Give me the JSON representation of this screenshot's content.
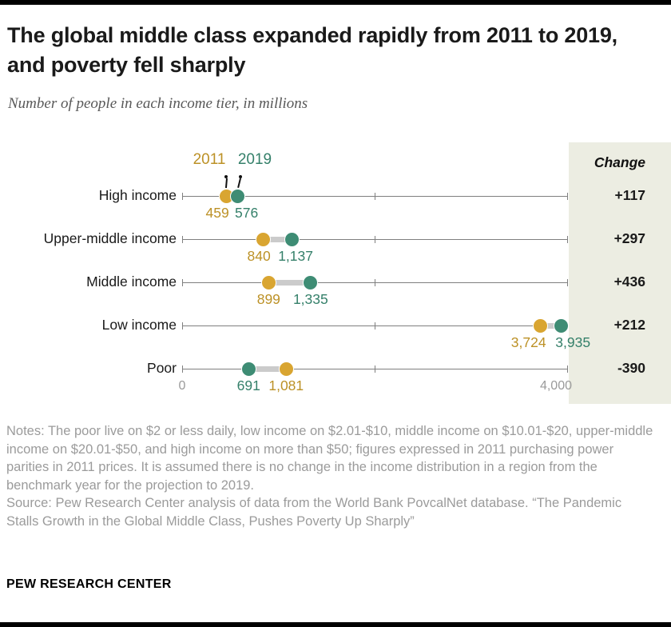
{
  "header": {
    "title": "The global middle class expanded rapidly from 2011 to 2019, and poverty fell sharply",
    "subtitle": "Number of people in each income tier, in millions"
  },
  "chart_data": {
    "type": "dumbbell",
    "title": "The global middle class expanded rapidly from 2011 to 2019, and poverty fell sharply",
    "subtitle": "Number of people in each income tier, in millions",
    "categories": [
      "High income",
      "Upper-middle income",
      "Middle income",
      "Low income",
      "Poor"
    ],
    "series": [
      {
        "name": "2011",
        "color": "#D9A531",
        "label_color": "#BC9126",
        "values": [
          459,
          840,
          899,
          3724,
          1081
        ],
        "labels": [
          "459",
          "840",
          "899",
          "3,724",
          "1,081"
        ]
      },
      {
        "name": "2019",
        "color": "#3E8C74",
        "label_color": "#35806A",
        "values": [
          576,
          1137,
          1335,
          3935,
          691
        ],
        "labels": [
          "576",
          "1,137",
          "1,335",
          "3,935",
          "691"
        ]
      }
    ],
    "changes": [
      "+117",
      "+297",
      "+436",
      "+212",
      "-390"
    ],
    "change_label": "Change",
    "xlim": [
      0,
      4000
    ],
    "x_ticks": [
      0,
      2000,
      4000
    ],
    "x_tick_labels": [
      "0",
      "",
      "4,000"
    ],
    "grid": false,
    "legend_position": "top"
  },
  "notes": {
    "notes_text": "Notes: The poor live on $2 or less daily, low income on $2.01-$10, middle income on $10.01-$20, upper-middle income on $20.01-$50, and high income on more than $50; figures expressed in 2011 purchasing power parities in 2011 prices. It is assumed there is no change in the income distribution in a region from the benchmark year for the projection to 2019.",
    "source_text": "Source: Pew Research Center analysis of data from the World Bank PovcalNet database. “The Pandemic Stalls Growth in the Global Middle Class, Pushes Poverty Up Sharply”"
  },
  "footer": {
    "brand": "PEW RESEARCH CENTER"
  }
}
